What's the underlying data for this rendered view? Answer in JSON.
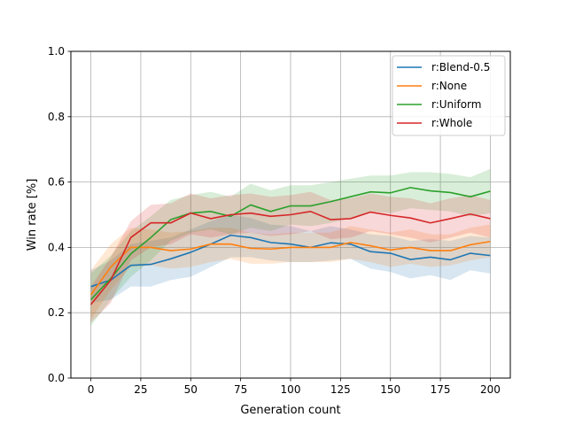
{
  "chart_data": {
    "type": "line",
    "xlabel": "Generation count",
    "ylabel": "Win rate [%]",
    "xlim": [
      -10,
      210
    ],
    "ylim": [
      0.0,
      1.0
    ],
    "xticks": [
      0,
      25,
      50,
      75,
      100,
      125,
      150,
      175,
      200
    ],
    "xtick_labels": [
      "0",
      "25",
      "50",
      "75",
      "100",
      "125",
      "150",
      "175",
      "200"
    ],
    "yticks": [
      0.0,
      0.2,
      0.4,
      0.6,
      0.8,
      1.0
    ],
    "ytick_labels": [
      "0.0",
      "0.2",
      "0.4",
      "0.6",
      "0.8",
      "1.0"
    ],
    "grid": true,
    "legend_position": "top-right",
    "x": [
      0,
      10,
      20,
      30,
      40,
      50,
      60,
      70,
      80,
      90,
      100,
      110,
      120,
      130,
      140,
      150,
      160,
      170,
      180,
      190,
      200
    ],
    "series": [
      {
        "name": "r:Blend-0.5",
        "color": "#1f77b4",
        "values": [
          0.28,
          0.3,
          0.345,
          0.348,
          0.365,
          0.385,
          0.41,
          0.437,
          0.43,
          0.415,
          0.41,
          0.4,
          0.414,
          0.41,
          0.387,
          0.382,
          0.363,
          0.37,
          0.362,
          0.382,
          0.375
        ],
        "lower": [
          0.23,
          0.24,
          0.28,
          0.28,
          0.3,
          0.31,
          0.34,
          0.37,
          0.37,
          0.36,
          0.355,
          0.355,
          0.36,
          0.365,
          0.335,
          0.325,
          0.305,
          0.315,
          0.3,
          0.33,
          0.32
        ],
        "upper": [
          0.33,
          0.36,
          0.41,
          0.42,
          0.43,
          0.455,
          0.48,
          0.5,
          0.49,
          0.47,
          0.465,
          0.45,
          0.465,
          0.455,
          0.44,
          0.435,
          0.42,
          0.425,
          0.42,
          0.435,
          0.43
        ]
      },
      {
        "name": "r:None",
        "color": "#ff7f0e",
        "values": [
          0.255,
          0.34,
          0.4,
          0.4,
          0.39,
          0.395,
          0.41,
          0.41,
          0.397,
          0.395,
          0.4,
          0.4,
          0.4,
          0.415,
          0.405,
          0.392,
          0.4,
          0.39,
          0.39,
          0.408,
          0.418
        ],
        "lower": [
          0.18,
          0.27,
          0.34,
          0.345,
          0.335,
          0.34,
          0.355,
          0.365,
          0.35,
          0.35,
          0.355,
          0.355,
          0.355,
          0.365,
          0.355,
          0.34,
          0.35,
          0.34,
          0.345,
          0.36,
          0.37
        ],
        "upper": [
          0.33,
          0.41,
          0.46,
          0.455,
          0.445,
          0.45,
          0.46,
          0.46,
          0.445,
          0.44,
          0.445,
          0.445,
          0.445,
          0.465,
          0.455,
          0.445,
          0.455,
          0.44,
          0.44,
          0.46,
          0.47
        ]
      },
      {
        "name": "r:Uniform",
        "color": "#2ca02c",
        "values": [
          0.24,
          0.305,
          0.38,
          0.43,
          0.485,
          0.505,
          0.51,
          0.495,
          0.53,
          0.51,
          0.527,
          0.527,
          0.54,
          0.555,
          0.57,
          0.567,
          0.583,
          0.573,
          0.568,
          0.555,
          0.572
        ],
        "lower": [
          0.16,
          0.24,
          0.31,
          0.36,
          0.42,
          0.445,
          0.455,
          0.44,
          0.46,
          0.45,
          0.47,
          0.465,
          0.475,
          0.49,
          0.51,
          0.505,
          0.52,
          0.515,
          0.51,
          0.495,
          0.505
        ],
        "upper": [
          0.32,
          0.375,
          0.45,
          0.495,
          0.545,
          0.56,
          0.57,
          0.555,
          0.595,
          0.575,
          0.59,
          0.59,
          0.6,
          0.61,
          0.62,
          0.62,
          0.63,
          0.63,
          0.625,
          0.615,
          0.64
        ]
      },
      {
        "name": "r:Whole",
        "color": "#d62728",
        "values": [
          0.225,
          0.3,
          0.43,
          0.475,
          0.475,
          0.505,
          0.488,
          0.5,
          0.505,
          0.495,
          0.5,
          0.51,
          0.485,
          0.488,
          0.508,
          0.498,
          0.49,
          0.475,
          0.488,
          0.502,
          0.488
        ],
        "lower": [
          0.17,
          0.23,
          0.36,
          0.4,
          0.41,
          0.44,
          0.43,
          0.44,
          0.445,
          0.435,
          0.44,
          0.45,
          0.425,
          0.43,
          0.45,
          0.44,
          0.43,
          0.415,
          0.43,
          0.445,
          0.43
        ],
        "upper": [
          0.28,
          0.37,
          0.48,
          0.53,
          0.535,
          0.565,
          0.55,
          0.56,
          0.565,
          0.555,
          0.56,
          0.57,
          0.545,
          0.55,
          0.565,
          0.555,
          0.55,
          0.535,
          0.55,
          0.56,
          0.545
        ]
      }
    ]
  }
}
